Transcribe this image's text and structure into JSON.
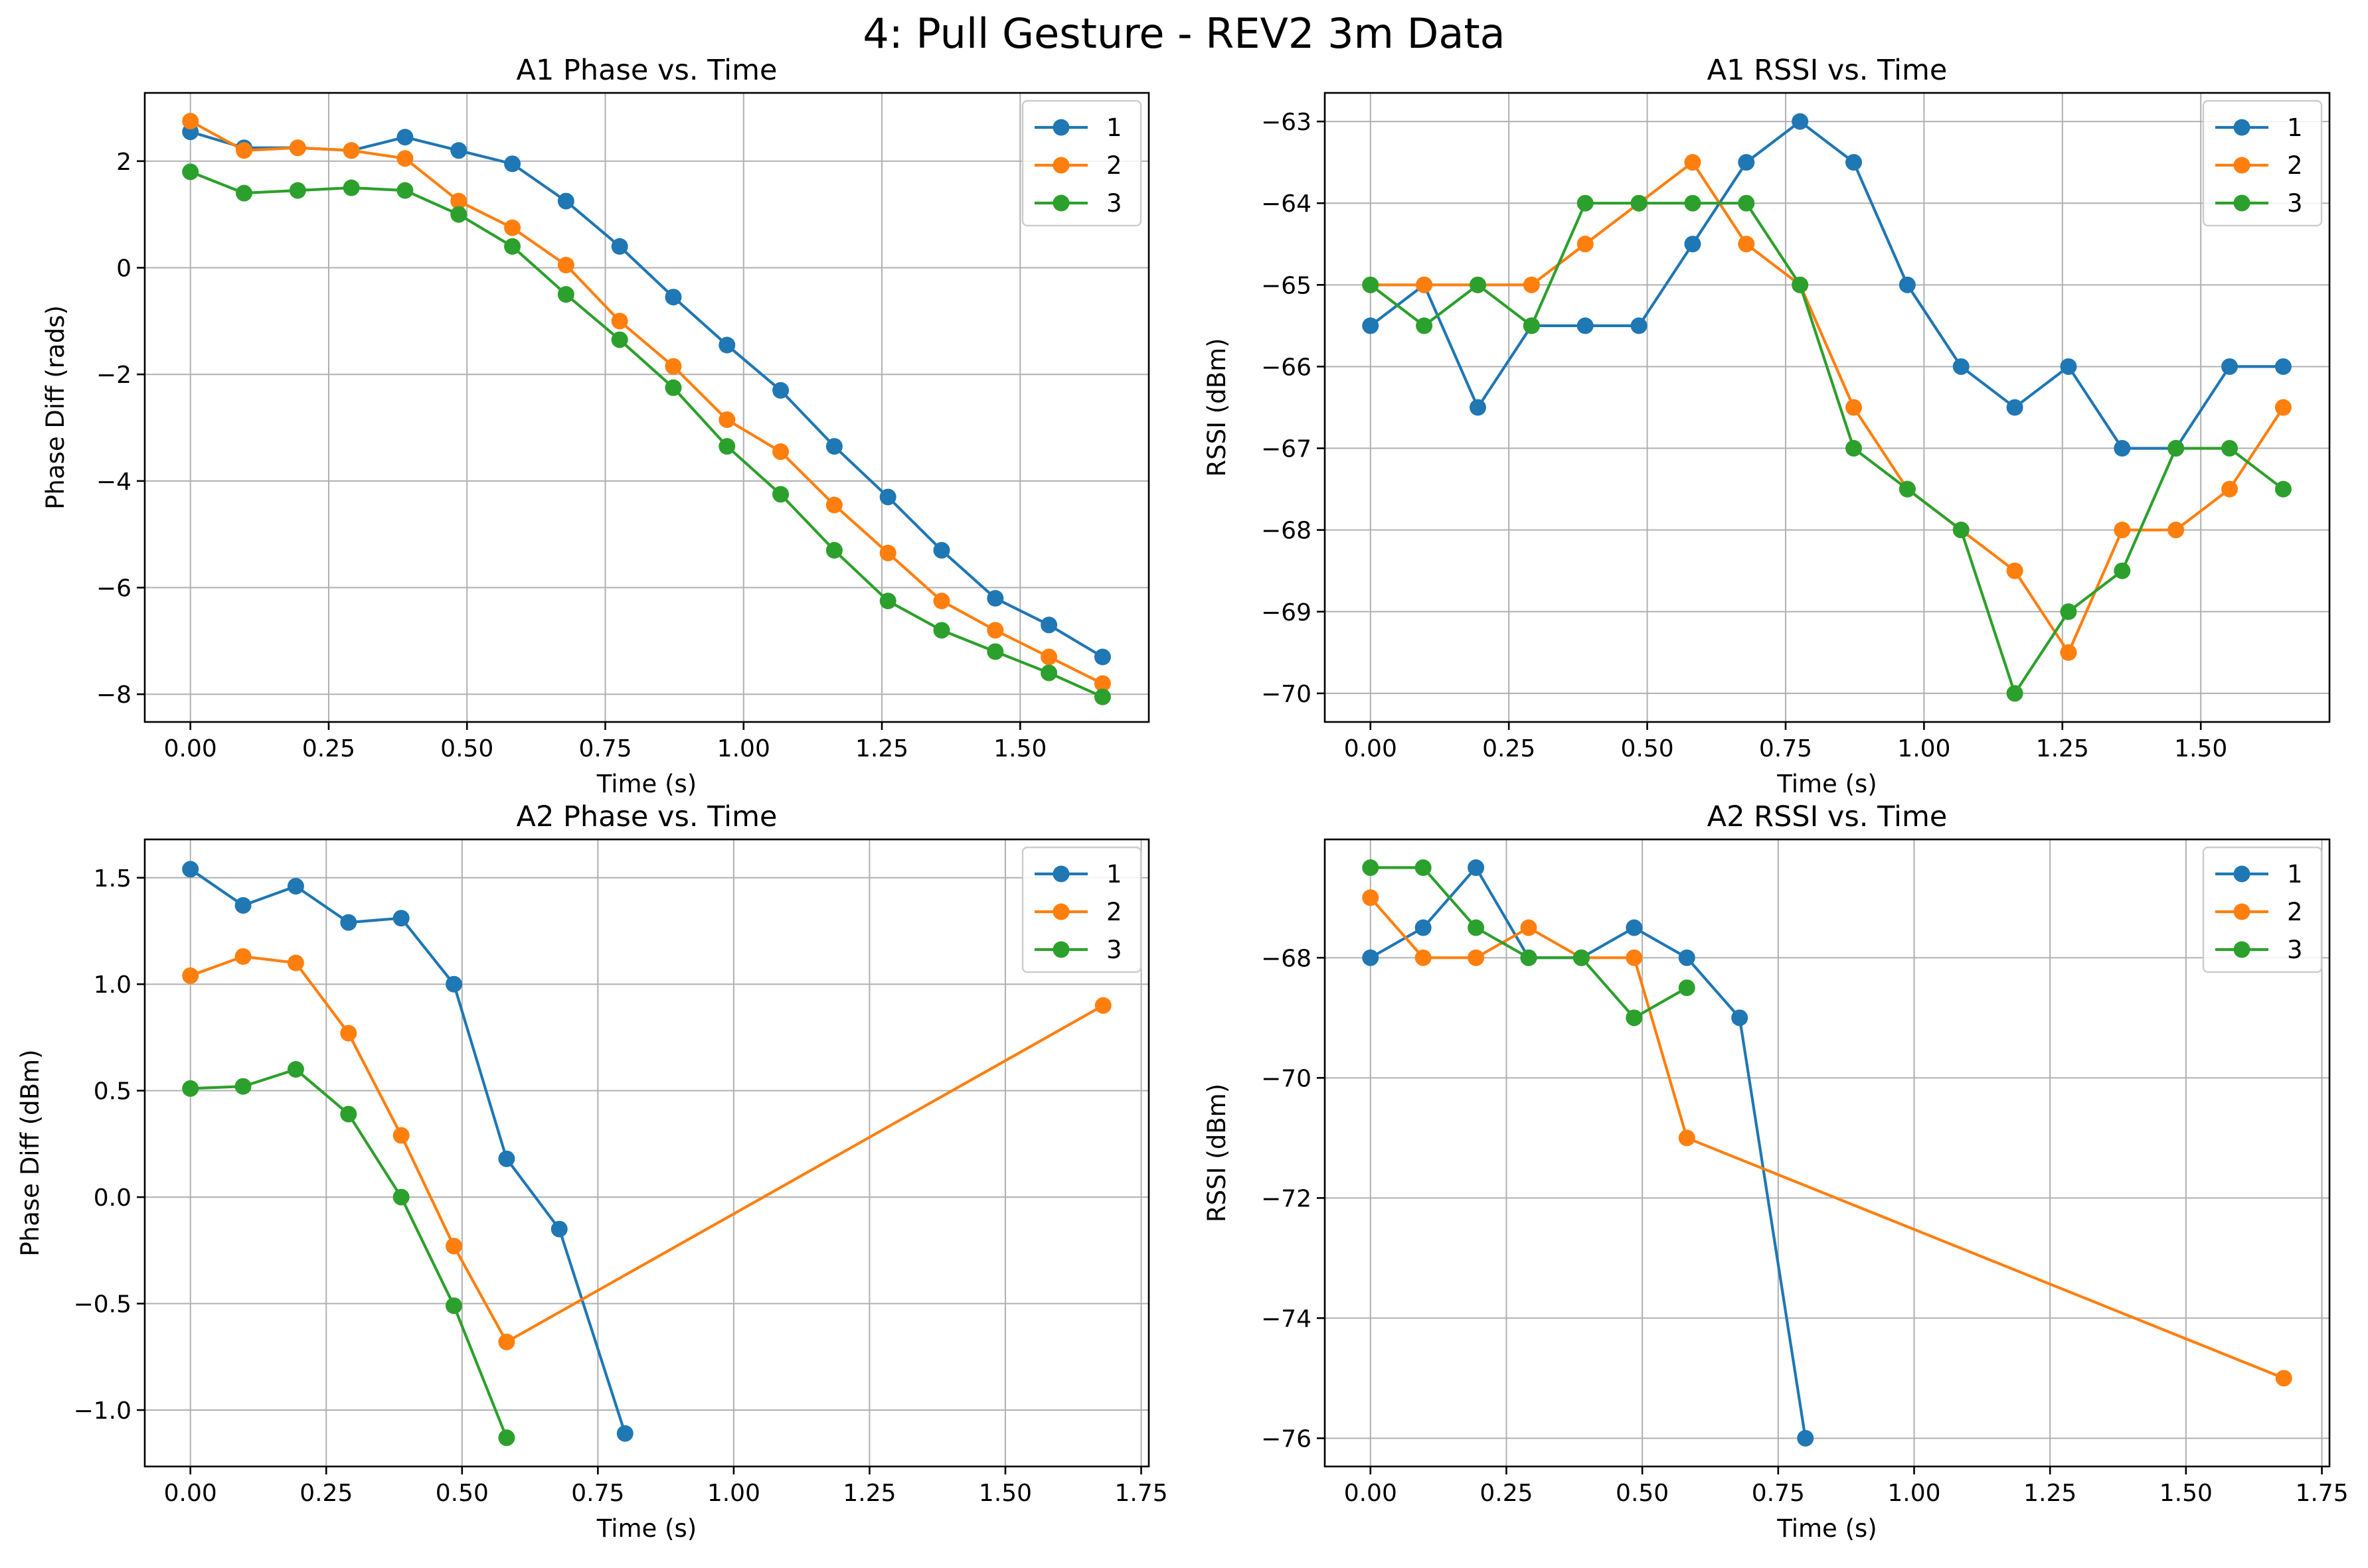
{
  "figure": {
    "suptitle": "4: Pull Gesture - REV2 3m Data"
  },
  "colors": {
    "series1": "#1f77b4",
    "series2": "#ff7f0e",
    "series3": "#2ca02c",
    "grid": "#b0b0b0",
    "axes": "#000000",
    "legend_frame": "#cccccc"
  },
  "chart_data": [
    {
      "type": "line",
      "title": "A1 Phase vs. Time",
      "xlabel": "Time (s)",
      "ylabel": "Phase Diff (rads)",
      "xlim": [
        -0.0825,
        1.7325
      ],
      "ylim": [
        -8.52,
        3.28
      ],
      "xticks": [
        0,
        0.25,
        0.5,
        0.75,
        1,
        1.25,
        1.5
      ],
      "xtick_labels": [
        "0.00",
        "0.25",
        "0.50",
        "0.75",
        "1.00",
        "1.25",
        "1.50"
      ],
      "yticks": [
        -8,
        -6,
        -4,
        -2,
        0,
        2
      ],
      "ytick_labels": [
        "−8",
        "−6",
        "−4",
        "−2",
        "0",
        "2"
      ],
      "grid": true,
      "legend_position": "top-right",
      "series": [
        {
          "name": "1",
          "x": [
            0,
            0.097,
            0.194,
            0.291,
            0.388,
            0.485,
            0.582,
            0.679,
            0.776,
            0.873,
            0.97,
            1.067,
            1.164,
            1.261,
            1.358,
            1.455,
            1.552,
            1.649
          ],
          "y": [
            2.55,
            2.25,
            2.25,
            2.2,
            2.45,
            2.2,
            1.95,
            1.25,
            0.4,
            -0.55,
            -1.45,
            -2.3,
            -3.35,
            -4.3,
            -5.3,
            -6.2,
            -6.7,
            -7.3
          ]
        },
        {
          "name": "2",
          "x": [
            0,
            0.097,
            0.194,
            0.291,
            0.388,
            0.485,
            0.582,
            0.679,
            0.776,
            0.873,
            0.97,
            1.067,
            1.164,
            1.261,
            1.358,
            1.455,
            1.552,
            1.649
          ],
          "y": [
            2.75,
            2.2,
            2.25,
            2.2,
            2.05,
            1.25,
            0.75,
            0.05,
            -1.0,
            -1.85,
            -2.85,
            -3.45,
            -4.45,
            -5.35,
            -6.25,
            -6.8,
            -7.3,
            -7.8
          ]
        },
        {
          "name": "3",
          "x": [
            0,
            0.097,
            0.194,
            0.291,
            0.388,
            0.485,
            0.582,
            0.679,
            0.776,
            0.873,
            0.97,
            1.067,
            1.164,
            1.261,
            1.358,
            1.455,
            1.552,
            1.649
          ],
          "y": [
            1.8,
            1.4,
            1.45,
            1.5,
            1.45,
            1.0,
            0.4,
            -0.5,
            -1.35,
            -2.25,
            -3.35,
            -4.25,
            -5.3,
            -6.25,
            -6.8,
            -7.2,
            -7.6,
            -8.05
          ]
        }
      ]
    },
    {
      "type": "line",
      "title": "A1 RSSI vs. Time",
      "xlabel": "Time (s)",
      "ylabel": "RSSI (dBm)",
      "xlim": [
        -0.0825,
        1.7325
      ],
      "ylim": [
        -70.35,
        -62.65
      ],
      "xticks": [
        0,
        0.25,
        0.5,
        0.75,
        1,
        1.25,
        1.5
      ],
      "xtick_labels": [
        "0.00",
        "0.25",
        "0.50",
        "0.75",
        "1.00",
        "1.25",
        "1.50"
      ],
      "yticks": [
        -70,
        -69,
        -68,
        -67,
        -66,
        -65,
        -64,
        -63
      ],
      "ytick_labels": [
        "−70",
        "−69",
        "−68",
        "−67",
        "−66",
        "−65",
        "−64",
        "−63"
      ],
      "grid": true,
      "legend_position": "top-right",
      "series": [
        {
          "name": "1",
          "x": [
            0,
            0.097,
            0.194,
            0.291,
            0.388,
            0.485,
            0.582,
            0.679,
            0.776,
            0.873,
            0.97,
            1.067,
            1.164,
            1.261,
            1.358,
            1.455,
            1.552,
            1.649
          ],
          "y": [
            -65.5,
            -65,
            -66.5,
            -65.5,
            -65.5,
            -65.5,
            -64.5,
            -63.5,
            -63,
            -63.5,
            -65,
            -66,
            -66.5,
            -66,
            -67,
            -67,
            -66,
            -66
          ]
        },
        {
          "name": "2",
          "x": [
            0,
            0.097,
            0.194,
            0.291,
            0.388,
            0.485,
            0.582,
            0.679,
            0.776,
            0.873,
            0.97,
            1.067,
            1.164,
            1.261,
            1.358,
            1.455,
            1.552,
            1.649
          ],
          "y": [
            -65,
            -65,
            -65,
            -65,
            -64.5,
            -64,
            -63.5,
            -64.5,
            -65,
            -66.5,
            -67.5,
            -68,
            -68.5,
            -69.5,
            -68,
            -68,
            -67.5,
            -66.5
          ]
        },
        {
          "name": "3",
          "x": [
            0,
            0.097,
            0.194,
            0.291,
            0.388,
            0.485,
            0.582,
            0.679,
            0.776,
            0.873,
            0.97,
            1.067,
            1.164,
            1.261,
            1.358,
            1.455,
            1.552,
            1.649
          ],
          "y": [
            -65,
            -65.5,
            -65,
            -65.5,
            -64,
            -64,
            -64,
            -64,
            -65,
            -67,
            -67.5,
            -68,
            -70,
            -69,
            -68.5,
            -67,
            -67,
            -67.5
          ]
        }
      ]
    },
    {
      "type": "line",
      "title": "A2 Phase vs. Time",
      "xlabel": "Time (s)",
      "ylabel": "Phase Diff (dBm)",
      "xlim": [
        -0.084,
        1.764
      ],
      "ylim": [
        -1.265,
        1.68
      ],
      "xticks": [
        0,
        0.25,
        0.5,
        0.75,
        1,
        1.25,
        1.5,
        1.75
      ],
      "xtick_labels": [
        "0.00",
        "0.25",
        "0.50",
        "0.75",
        "1.00",
        "1.25",
        "1.50",
        "1.75"
      ],
      "yticks": [
        -1.0,
        -0.5,
        0.0,
        0.5,
        1.0,
        1.5
      ],
      "ytick_labels": [
        "−1.0",
        "−0.5",
        "0.0",
        "0.5",
        "1.0",
        "1.5"
      ],
      "grid": true,
      "legend_position": "top-right",
      "series": [
        {
          "name": "1",
          "x": [
            0,
            0.097,
            0.194,
            0.291,
            0.388,
            0.485,
            0.582,
            0.679,
            0.8
          ],
          "y": [
            1.54,
            1.37,
            1.46,
            1.29,
            1.31,
            1.0,
            0.18,
            -0.15,
            -1.11
          ]
        },
        {
          "name": "2",
          "x": [
            0,
            0.097,
            0.194,
            0.291,
            0.388,
            0.485,
            0.582,
            1.68
          ],
          "y": [
            1.04,
            1.13,
            1.1,
            0.77,
            0.29,
            -0.23,
            -0.68,
            0.9
          ]
        },
        {
          "name": "3",
          "x": [
            0,
            0.097,
            0.194,
            0.291,
            0.388,
            0.485,
            0.582
          ],
          "y": [
            0.51,
            0.52,
            0.6,
            0.39,
            0.0,
            -0.51,
            -1.13
          ]
        }
      ]
    },
    {
      "type": "line",
      "title": "A2 RSSI vs. Time",
      "xlabel": "Time (s)",
      "ylabel": "RSSI (dBm)",
      "xlim": [
        -0.084,
        1.764
      ],
      "ylim": [
        -76.47,
        -66.03
      ],
      "xticks": [
        0,
        0.25,
        0.5,
        0.75,
        1,
        1.25,
        1.5,
        1.75
      ],
      "xtick_labels": [
        "0.00",
        "0.25",
        "0.50",
        "0.75",
        "1.00",
        "1.25",
        "1.50",
        "1.75"
      ],
      "yticks": [
        -76,
        -74,
        -72,
        -70,
        -68
      ],
      "ytick_labels": [
        "−76",
        "−74",
        "−72",
        "−70",
        "−68"
      ],
      "grid": true,
      "legend_position": "top-right",
      "series": [
        {
          "name": "1",
          "x": [
            0,
            0.097,
            0.194,
            0.291,
            0.388,
            0.485,
            0.582,
            0.679,
            0.8
          ],
          "y": [
            -68,
            -67.5,
            -66.5,
            -68,
            -68,
            -67.5,
            -68,
            -69,
            -76
          ]
        },
        {
          "name": "2",
          "x": [
            0,
            0.097,
            0.194,
            0.291,
            0.388,
            0.485,
            0.582,
            1.68
          ],
          "y": [
            -67,
            -68,
            -68,
            -67.5,
            -68,
            -68,
            -71,
            -75
          ]
        },
        {
          "name": "3",
          "x": [
            0,
            0.097,
            0.194,
            0.291,
            0.388,
            0.485,
            0.582
          ],
          "y": [
            -66.5,
            -66.5,
            -67.5,
            -68,
            -68,
            -69,
            -68.5
          ]
        }
      ]
    }
  ]
}
